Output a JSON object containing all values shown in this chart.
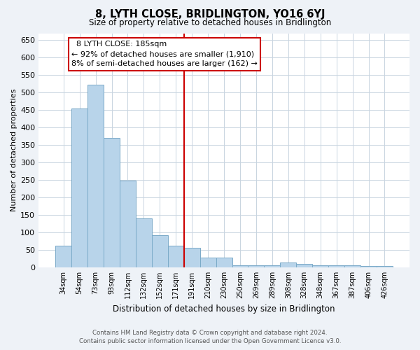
{
  "title": "8, LYTH CLOSE, BRIDLINGTON, YO16 6YJ",
  "subtitle": "Size of property relative to detached houses in Bridlington",
  "xlabel": "Distribution of detached houses by size in Bridlington",
  "ylabel": "Number of detached properties",
  "bar_labels": [
    "34sqm",
    "54sqm",
    "73sqm",
    "93sqm",
    "112sqm",
    "132sqm",
    "152sqm",
    "171sqm",
    "191sqm",
    "210sqm",
    "230sqm",
    "250sqm",
    "269sqm",
    "289sqm",
    "308sqm",
    "328sqm",
    "348sqm",
    "367sqm",
    "387sqm",
    "406sqm",
    "426sqm"
  ],
  "bar_values": [
    62,
    455,
    522,
    370,
    248,
    140,
    93,
    62,
    55,
    28,
    28,
    5,
    5,
    5,
    13,
    10,
    5,
    5,
    5,
    3,
    3
  ],
  "bar_color": "#b8d4ea",
  "bar_edge_color": "#7aaac8",
  "ylim": [
    0,
    670
  ],
  "yticks": [
    0,
    50,
    100,
    150,
    200,
    250,
    300,
    350,
    400,
    450,
    500,
    550,
    600,
    650
  ],
  "vline_color": "#cc0000",
  "annotation_title": "8 LYTH CLOSE: 185sqm",
  "annotation_line1": "← 92% of detached houses are smaller (1,910)",
  "annotation_line2": "8% of semi-detached houses are larger (162) →",
  "annotation_box_color": "#ffffff",
  "annotation_box_edge": "#cc0000",
  "footer_line1": "Contains HM Land Registry data © Crown copyright and database right 2024.",
  "footer_line2": "Contains public sector information licensed under the Open Government Licence v3.0.",
  "bg_color": "#eef2f7",
  "plot_bg_color": "#ffffff",
  "grid_color": "#c8d4e0"
}
